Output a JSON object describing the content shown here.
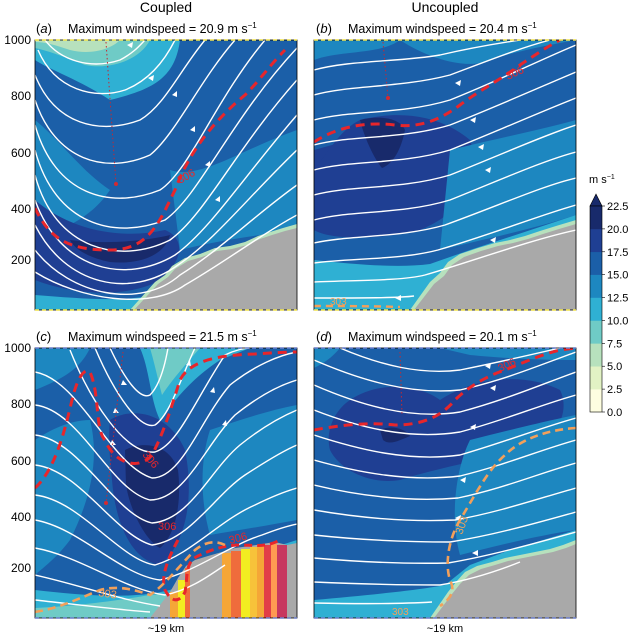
{
  "figure": {
    "column_titles": [
      "Coupled",
      "Uncoupled"
    ],
    "distance_label": "~19 km",
    "colorbar": {
      "unit": "m s",
      "unit_exponent": "−1",
      "levels": [
        0.0,
        2.5,
        5.0,
        7.5,
        10.0,
        12.5,
        15.0,
        17.5,
        20.0,
        22.5
      ],
      "tick_labels": [
        "22.5",
        "20.0",
        "17.5",
        "15.0",
        "12.5",
        "10.0",
        "7.5",
        "5.0",
        "2.5",
        "0.0"
      ],
      "colors": [
        "#fefee0",
        "#e2f2c4",
        "#b7e1bd",
        "#6fcbc6",
        "#2fb0d3",
        "#1d87c0",
        "#1b5fa8",
        "#1f3f93",
        "#182a6b"
      ]
    },
    "fire_colors": [
      "#f2ed21",
      "#f5a637",
      "#ef6c3c",
      "#e23e48",
      "#c7385f",
      "#f7c23a",
      "#ff9a52"
    ],
    "colors": {
      "streamline": "#ffffff",
      "isentrope_306": "#e8262b",
      "isentrope_303": "#f2a05a",
      "terrain": "#a9a9a9",
      "top_border_uncoupled_panels": "#f1e24a",
      "top_border_coupled_panels": "#6b7dc9"
    }
  },
  "chart_data": [
    {
      "panel": "a",
      "type": "contour",
      "panel_label_letter": "a",
      "title_prefix": "Maximum windspeed = ",
      "max_windspeed": 20.9,
      "max_windspeed_text": "20.9",
      "unit": "m s",
      "unit_exponent": "−1",
      "yticks": [
        1000,
        800,
        600,
        400,
        200
      ],
      "ylim": [
        20,
        1000
      ],
      "isentrope_labels": [
        "306"
      ],
      "show_xlabel": false
    },
    {
      "panel": "b",
      "type": "contour",
      "panel_label_letter": "b",
      "title_prefix": "Maximum windspeed = ",
      "max_windspeed": 20.4,
      "max_windspeed_text": "20.4",
      "unit": "m s",
      "unit_exponent": "−1",
      "yticks": [],
      "ylim": [
        20,
        1000
      ],
      "isentrope_labels": [
        "306",
        "303"
      ],
      "show_xlabel": false
    },
    {
      "panel": "c",
      "type": "contour",
      "panel_label_letter": "c",
      "title_prefix": "Maximum windspeed = ",
      "max_windspeed": 21.5,
      "max_windspeed_text": "21.5",
      "unit": "m s",
      "unit_exponent": "−1",
      "yticks": [
        1000,
        800,
        600,
        400,
        200
      ],
      "ylim": [
        20,
        1000
      ],
      "isentrope_labels": [
        "306",
        "306",
        "306",
        "303"
      ],
      "show_xlabel": true
    },
    {
      "panel": "d",
      "type": "contour",
      "panel_label_letter": "d",
      "title_prefix": "Maximum windspeed = ",
      "max_windspeed": 20.1,
      "max_windspeed_text": "20.1",
      "unit": "m s",
      "unit_exponent": "−1",
      "yticks": [],
      "ylim": [
        20,
        1000
      ],
      "isentrope_labels": [
        "306",
        "303",
        "303"
      ],
      "show_xlabel": true
    }
  ]
}
